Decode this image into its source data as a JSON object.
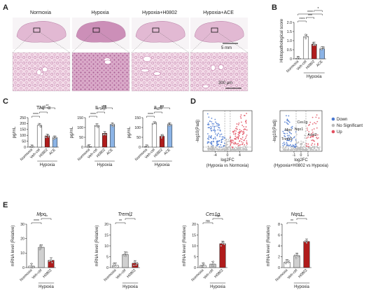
{
  "panel_labels": {
    "a": "A",
    "b": "B",
    "c": "C",
    "d": "D",
    "e": "E"
  },
  "panel_a": {
    "groups": [
      "Normoxia",
      "Hypoxia",
      "Hypoxia+H0802",
      "Hypoxia+ACE"
    ],
    "scale_top": "5 mm",
    "scale_bottom": "300 μm"
  },
  "colors": {
    "normoxia": "#ffffff",
    "vehctrl": "#ffffff",
    "h0802": "#b01c1c",
    "ace": "#8cb4e6",
    "gray": "#d0d0d0",
    "down": "#4a78d0",
    "nonsig": "#bbbbbb",
    "up": "#e25060"
  },
  "chart_data": [
    {
      "id": "B",
      "type": "bar",
      "ylabel": "Histopathological score",
      "ylim": [
        0,
        2
      ],
      "yticks": [
        0,
        0.5,
        1.0,
        1.5,
        2.0
      ],
      "tick_labels": [
        "0",
        "0.5",
        "1.0",
        "1.5",
        "2.0"
      ],
      "categories": [
        "Normoxia",
        "Veh-ctrl",
        "H0802",
        "ACE"
      ],
      "values": [
        0.02,
        1.22,
        0.8,
        0.55
      ],
      "group_label": "Hypoxia",
      "sig": [
        "****",
        "***",
        "****",
        "*"
      ]
    },
    {
      "id": "C1",
      "type": "bar",
      "title": "TNF-α",
      "ylabel": "pg/mL",
      "ylim": [
        0,
        250
      ],
      "yticks": [
        0,
        50,
        100,
        150,
        200,
        250
      ],
      "tick_labels": [
        "0",
        "50",
        "100",
        "150",
        "200",
        "250"
      ],
      "categories": [
        "Normoxia",
        "Veh-ctrl",
        "H0802",
        "ACE"
      ],
      "values": [
        3,
        185,
        95,
        80
      ],
      "group_label": "Hypoxia",
      "sig": [
        "****",
        "*",
        "**"
      ]
    },
    {
      "id": "C2",
      "type": "bar",
      "title": "IL-1β",
      "ylabel": "pg/mL",
      "ylim": [
        0,
        150
      ],
      "yticks": [
        0,
        50,
        100,
        150
      ],
      "tick_labels": [
        "0",
        "50",
        "100",
        "150"
      ],
      "categories": [
        "Normoxia",
        "Veh-ctrl",
        "H0802",
        "ACE"
      ],
      "values": [
        3,
        110,
        70,
        115
      ],
      "group_label": "Hypoxia",
      "sig": [
        "****",
        "*",
        "ns"
      ]
    },
    {
      "id": "C3",
      "type": "bar",
      "title": "IL-6",
      "ylabel": "pg/mL",
      "ylim": [
        0,
        150
      ],
      "yticks": [
        0,
        50,
        100,
        150
      ],
      "tick_labels": [
        "0",
        "50",
        "100",
        "150"
      ],
      "categories": [
        "Normoxia",
        "Veh-ctrl",
        "H0802",
        "ACE"
      ],
      "values": [
        2,
        120,
        55,
        115
      ],
      "group_label": "Hypoxia",
      "sig": [
        "****",
        "**",
        "ns"
      ]
    },
    {
      "id": "D1",
      "type": "scatter",
      "xlabel": "log2FC",
      "xlabel2": "(Hypoxia vs Normoxia)",
      "ylabel": "-log10(Padj)",
      "xlim": [
        -8,
        8
      ],
      "xticks": [
        -4,
        0,
        4
      ],
      "tick_labels": [
        "-4",
        "0",
        "4"
      ]
    },
    {
      "id": "D2",
      "type": "scatter",
      "xlabel": "log2FC",
      "xlabel2": "(Hypoxia+H0802 vs Hypoxia)",
      "ylabel": "-log10(Padj)",
      "xlim": [
        -3,
        3
      ],
      "xticks": [
        -1,
        0,
        1
      ],
      "tick_labels": [
        "-1",
        "0",
        "1"
      ],
      "annotations": [
        "Ces1g",
        "Nqo1",
        "Mpo",
        "Treml1",
        "Acot2"
      ],
      "legend": [
        "Down",
        "No Significant",
        "Up"
      ]
    },
    {
      "id": "E1",
      "type": "bar",
      "title": "Mpo",
      "ylabel": "mRNA level (Relative)",
      "ylim": [
        0,
        30
      ],
      "yticks": [
        0,
        10,
        20,
        30
      ],
      "tick_labels": [
        "0",
        "10",
        "20",
        "30"
      ],
      "categories": [
        "Normoxia",
        "Veh-ctrl",
        "H0802"
      ],
      "values": [
        1,
        14,
        5
      ],
      "group_label": "Hypoxia",
      "sig": [
        "****",
        "**"
      ]
    },
    {
      "id": "E2",
      "type": "bar",
      "title": "Treml1",
      "ylabel": "mRNA level (Relative)",
      "ylim": [
        0,
        20
      ],
      "yticks": [
        0,
        5,
        10,
        15,
        20
      ],
      "tick_labels": [
        "0",
        "5",
        "10",
        "15",
        "20"
      ],
      "categories": [
        "Normoxia",
        "Veh-ctrl",
        "H0802"
      ],
      "values": [
        1,
        6,
        2
      ],
      "group_label": "Hypoxia",
      "sig": [
        "**",
        "*"
      ]
    },
    {
      "id": "E3",
      "type": "bar",
      "title": "Ces1g",
      "ylabel": "mRNA level (Relative)",
      "ylim": [
        0,
        20
      ],
      "yticks": [
        0,
        5,
        10,
        15,
        20
      ],
      "tick_labels": [
        "0",
        "5",
        "10",
        "15",
        "20"
      ],
      "categories": [
        "Normoxia",
        "Veh-ctrl",
        "H0802"
      ],
      "values": [
        1,
        1.6,
        11
      ],
      "group_label": "Hypoxia",
      "sig": [
        "ns",
        "****"
      ]
    },
    {
      "id": "E4",
      "type": "bar",
      "title": "Nqo1",
      "ylabel": "mRNA level (Relative)",
      "ylim": [
        0,
        8
      ],
      "yticks": [
        0,
        2,
        4,
        6,
        8
      ],
      "tick_labels": [
        "0",
        "2",
        "4",
        "6",
        "8"
      ],
      "categories": [
        "Normoxia",
        "Veh-ctrl",
        "H0802"
      ],
      "values": [
        1,
        2.2,
        4.8
      ],
      "group_label": "Hypoxia",
      "sig": [
        "**",
        "****"
      ]
    }
  ]
}
